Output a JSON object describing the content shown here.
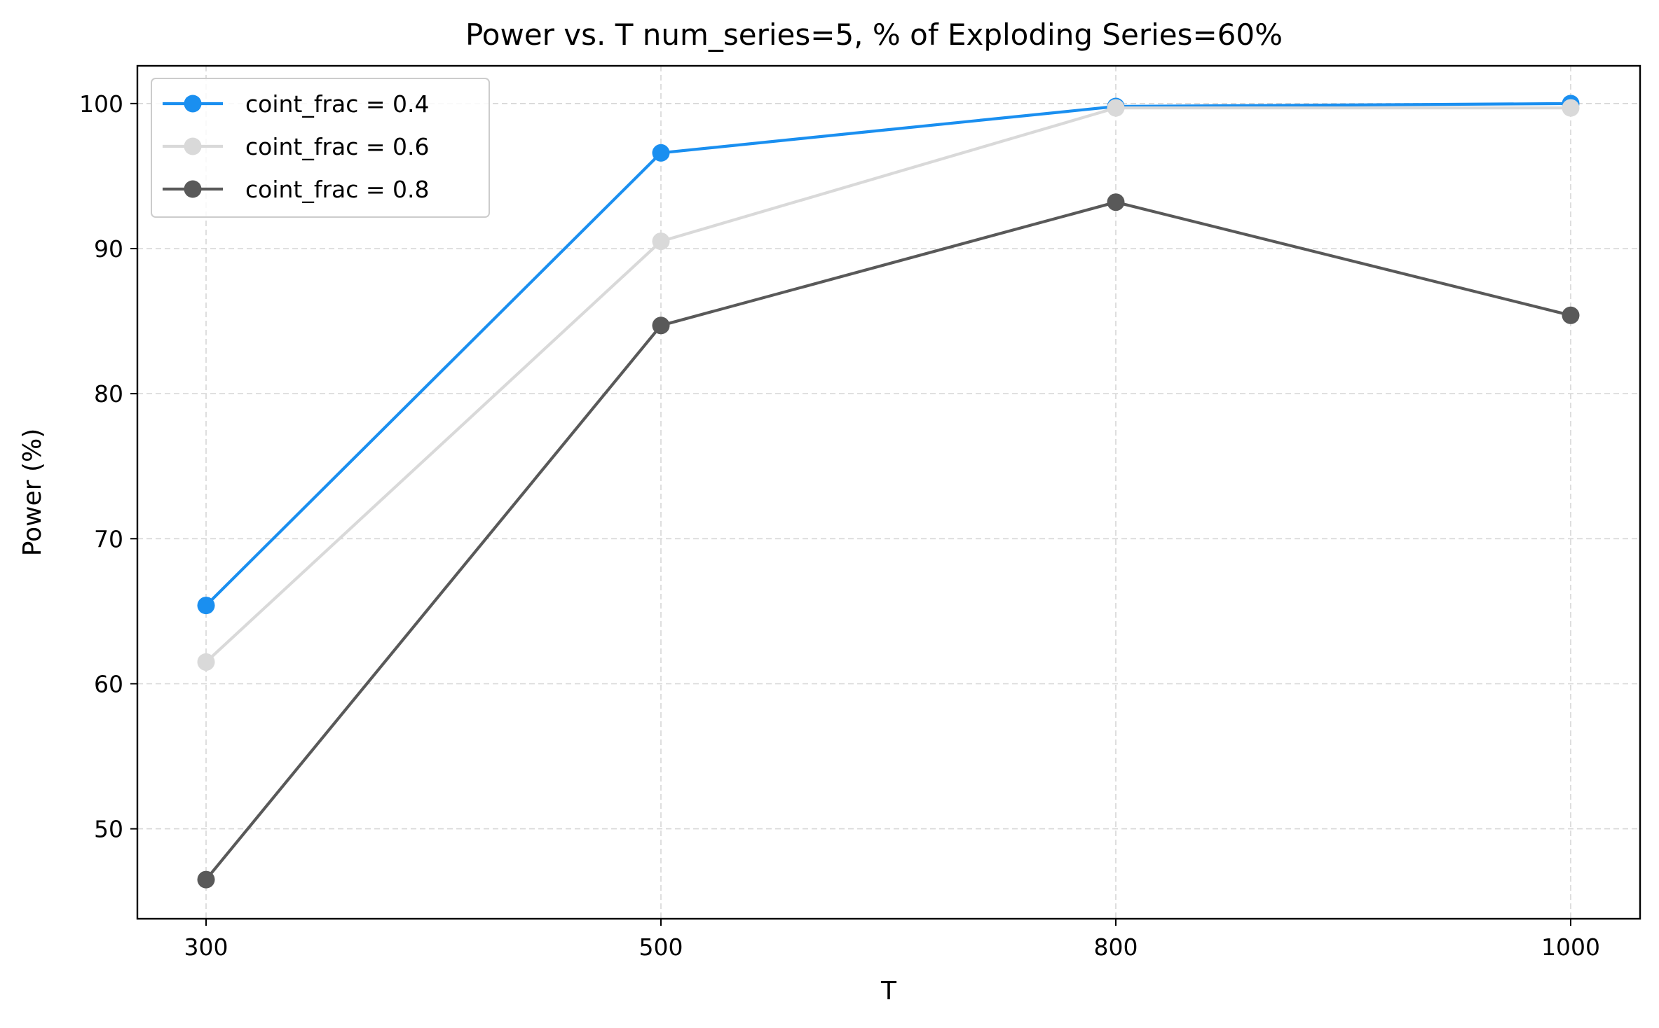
{
  "chart_data": {
    "type": "line",
    "title": "Power vs. T  num_series=5, % of Exploding Series=60%",
    "xlabel": "T",
    "ylabel": "Power (%)",
    "categories": [
      "300",
      "500",
      "800",
      "1000"
    ],
    "ylim": [
      43.8,
      102.6
    ],
    "yticks": [
      50,
      60,
      70,
      80,
      90,
      100
    ],
    "grid": true,
    "legend_position": "top-left",
    "series": [
      {
        "name": "coint_frac = 0.4",
        "color": "#1a8ff0",
        "values": [
          65.4,
          96.6,
          99.8,
          100.0
        ]
      },
      {
        "name": "coint_frac = 0.6",
        "color": "#d9d9d9",
        "values": [
          61.5,
          90.5,
          99.7,
          99.7
        ]
      },
      {
        "name": "coint_frac = 0.8",
        "color": "#595959",
        "values": [
          46.5,
          84.7,
          93.2,
          85.4
        ]
      }
    ]
  }
}
